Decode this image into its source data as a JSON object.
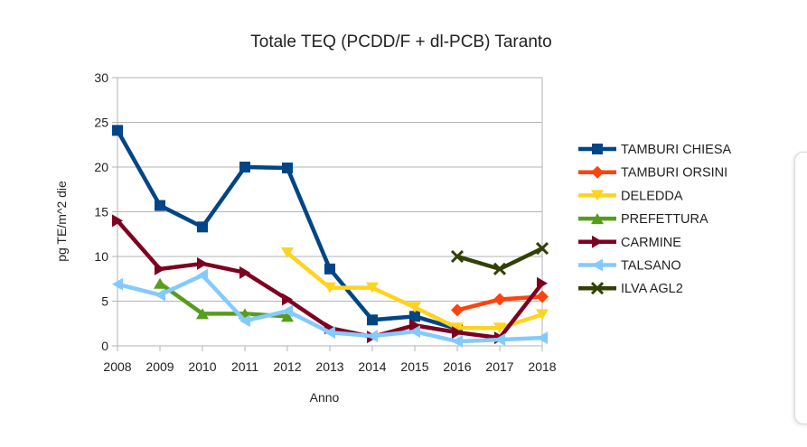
{
  "chart_data": {
    "type": "line",
    "title": "Totale TEQ (PCDD/F + dl-PCB) Taranto",
    "xlabel": "Anno",
    "ylabel": "pg TE/m^2 die",
    "ylim": [
      0,
      30
    ],
    "yticks": [
      0,
      5,
      10,
      15,
      20,
      25,
      30
    ],
    "x": [
      2008,
      2009,
      2010,
      2011,
      2012,
      2013,
      2014,
      2015,
      2016,
      2017,
      2018
    ],
    "grid": true,
    "legend_position": "right",
    "series": [
      {
        "name": "TAMBURI CHIESA",
        "color": "#004586",
        "marker": "square",
        "values": [
          24.1,
          15.7,
          13.3,
          20.0,
          19.9,
          8.6,
          2.9,
          3.3,
          1.9,
          null,
          null
        ]
      },
      {
        "name": "TAMBURI ORSINI",
        "color": "#ff420e",
        "marker": "diamond",
        "values": [
          null,
          null,
          null,
          null,
          null,
          null,
          null,
          null,
          4.0,
          5.2,
          5.5
        ]
      },
      {
        "name": "DELEDDA",
        "color": "#ffd320",
        "marker": "triangle-down",
        "values": [
          null,
          null,
          null,
          null,
          10.4,
          6.5,
          6.5,
          4.3,
          2.0,
          2.0,
          3.5
        ]
      },
      {
        "name": "PREFETTURA",
        "color": "#579d1c",
        "marker": "triangle-up",
        "values": [
          null,
          7.0,
          3.6,
          3.6,
          3.3,
          null,
          null,
          null,
          null,
          null,
          null
        ]
      },
      {
        "name": "CARMINE",
        "color": "#7e0021",
        "marker": "triangle-right",
        "values": [
          14.0,
          8.6,
          9.2,
          8.2,
          5.2,
          2.0,
          1.0,
          2.3,
          1.5,
          0.9,
          7.0
        ]
      },
      {
        "name": "TALSANO",
        "color": "#83caff",
        "marker": "triangle-left",
        "values": [
          6.9,
          5.7,
          7.9,
          2.8,
          3.9,
          1.5,
          1.1,
          1.6,
          0.5,
          0.7,
          0.9
        ]
      },
      {
        "name": "ILVA AGL2",
        "color": "#314004",
        "marker": "x",
        "values": [
          null,
          null,
          null,
          null,
          null,
          null,
          null,
          null,
          10.0,
          8.6,
          10.9
        ]
      }
    ]
  }
}
